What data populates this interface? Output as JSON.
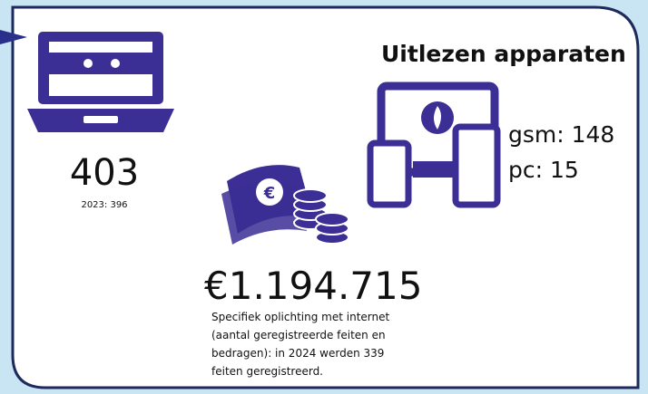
{
  "laptops": {
    "value": "403",
    "previous": "2023: 396"
  },
  "devices": {
    "title": "Uitlezen apparaten",
    "gsm": "gsm: 148",
    "pc": "pc: 15"
  },
  "fraud": {
    "amount": "€1.194.715",
    "description": [
      "Specifiek oplichting met internet",
      "(aantal geregistreerde feiten en",
      "bedragen): in 2024 werden 339",
      "feiten geregistreerd."
    ]
  }
}
